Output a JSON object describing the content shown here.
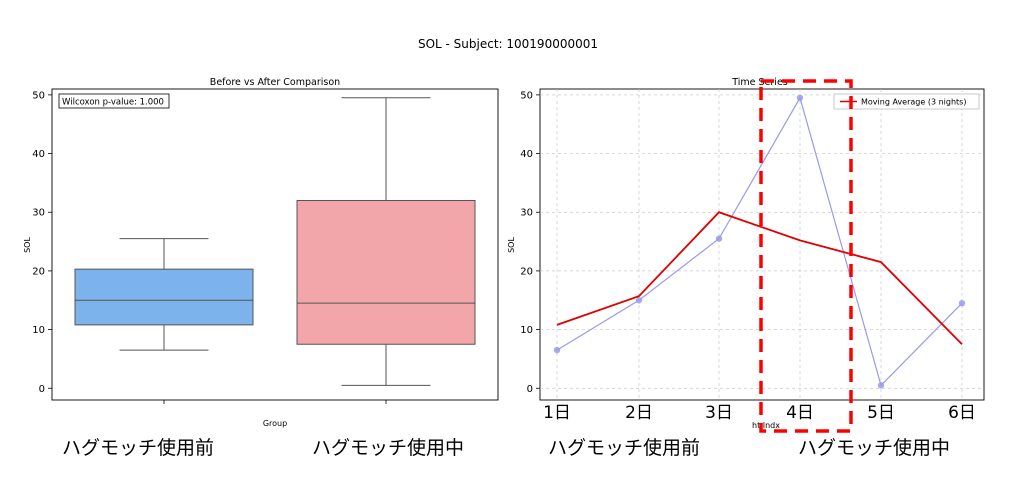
{
  "figure_title": "SOL - Subject: 100190000001",
  "captions": {
    "left_before": "ハグモッチ使用前",
    "left_during": "ハグモッチ使用中",
    "right_before": "ハグモッチ使用前",
    "right_during": "ハグモッチ使用中"
  },
  "colors": {
    "before_box": "#7db3ec",
    "during_box": "#f2a6aa",
    "raw_line": "#9a9ae8",
    "moving_average": "#e00000",
    "highlight_box": "#ff0000"
  },
  "chart_data": [
    {
      "type": "box",
      "title": "Before vs After Comparison",
      "xlabel": "Group",
      "ylabel": "SOL",
      "ylim": [
        -2,
        51
      ],
      "yticks": [
        0,
        10,
        20,
        30,
        40,
        50
      ],
      "annotation": "Wilcoxon p-value: 1.000",
      "grid": false,
      "boxes": [
        {
          "group": "before",
          "whisker_low": 6.5,
          "q1": 10.8,
          "median": 15.0,
          "q3": 20.3,
          "whisker_high": 25.5
        },
        {
          "group": "during",
          "whisker_low": 0.5,
          "q1": 7.5,
          "median": 14.5,
          "q3": 32.0,
          "whisker_high": 49.5
        }
      ]
    },
    {
      "type": "line",
      "title": "Time Series",
      "xlabel": "ht Indx",
      "ylabel": "SOL",
      "ylim": [
        -2,
        51
      ],
      "yticks": [
        0,
        10,
        20,
        30,
        40,
        50
      ],
      "grid": true,
      "legend_position": "top-right",
      "categories": [
        "1日",
        "2日",
        "3日",
        "4日",
        "5日",
        "6日"
      ],
      "series": [
        {
          "key": "raw",
          "values": [
            6.5,
            15.0,
            25.5,
            49.5,
            0.5,
            14.5
          ]
        },
        {
          "key": "ma",
          "name": "Moving Average (3 nights)",
          "values": [
            10.8,
            15.7,
            30.0,
            25.2,
            21.5,
            7.5
          ]
        }
      ],
      "highlight_category": "4日"
    }
  ]
}
